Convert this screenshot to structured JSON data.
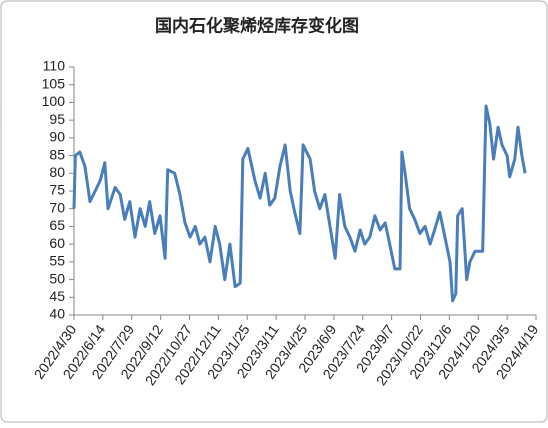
{
  "chart_data": {
    "type": "line",
    "title": "国内石化聚烯烃库存变化图",
    "color": "#4a7ebb",
    "x": [
      "2022/4/30",
      "2022/5/2",
      "2022/5/9",
      "2022/5/17",
      "2022/5/25",
      "2022/6/2",
      "2022/6/10",
      "2022/6/17",
      "2022/6/22",
      "2022/7/3",
      "2022/7/11",
      "2022/7/18",
      "2022/7/26",
      "2022/8/3",
      "2022/8/11",
      "2022/8/19",
      "2022/8/26",
      "2022/9/3",
      "2022/9/11",
      "2022/9/19",
      "2022/9/23",
      "2022/10/4",
      "2022/10/12",
      "2022/10/20",
      "2022/10/28",
      "2022/11/5",
      "2022/11/12",
      "2022/11/20",
      "2022/11/28",
      "2022/12/6",
      "2022/12/13",
      "2022/12/21",
      "2022/12/29",
      "2023/1/6",
      "2023/1/14",
      "2023/1/18",
      "2023/1/26",
      "2023/2/6",
      "2023/2/14",
      "2023/2/22",
      "2023/3/1",
      "2023/3/9",
      "2023/3/17",
      "2023/3/25",
      "2023/4/2",
      "2023/4/9",
      "2023/4/17",
      "2023/4/22",
      "2023/5/3",
      "2023/5/10",
      "2023/5/18",
      "2023/5/26",
      "2023/6/3",
      "2023/6/11",
      "2023/6/18",
      "2023/6/26",
      "2023/7/4",
      "2023/7/12",
      "2023/7/20",
      "2023/7/27",
      "2023/8/4",
      "2023/8/12",
      "2023/8/20",
      "2023/8/28",
      "2023/9/4",
      "2023/9/12",
      "2023/9/20",
      "2023/9/23",
      "2023/9/28",
      "2023/10/5",
      "2023/10/13",
      "2023/10/21",
      "2023/10/29",
      "2023/11/6",
      "2023/11/13",
      "2023/11/21",
      "2023/11/29",
      "2023/12/7",
      "2023/12/11",
      "2023/12/16",
      "2023/12/19",
      "2023/12/26",
      "2024/1/2",
      "2024/1/7",
      "2024/1/15",
      "2024/1/27",
      "2024/2/1",
      "2024/2/7",
      "2024/2/13",
      "2024/2/20",
      "2024/2/26",
      "2024/3/5",
      "2024/3/9",
      "2024/3/17",
      "2024/3/22",
      "2024/3/28",
      "2024/4/2"
    ],
    "values": [
      70,
      85,
      86,
      82,
      72,
      75,
      78,
      83,
      70,
      76,
      74,
      67,
      72,
      62,
      70,
      65,
      72,
      63,
      68,
      56,
      81,
      80,
      74,
      66,
      62,
      65,
      60,
      62,
      55,
      65,
      60,
      50,
      60,
      48,
      49,
      84,
      87,
      78,
      73,
      80,
      71,
      73,
      82,
      88,
      75,
      69,
      63,
      88,
      84,
      75,
      70,
      74,
      65,
      56,
      74,
      65,
      62,
      58,
      64,
      60,
      62,
      68,
      64,
      66,
      60,
      53,
      53,
      86,
      80,
      70,
      67,
      63,
      65,
      60,
      64,
      69,
      62,
      55,
      44,
      46,
      68,
      70,
      50,
      55,
      58,
      58,
      99,
      94,
      84,
      93,
      88,
      85,
      79,
      84,
      93,
      85,
      80
    ],
    "xlim": [
      "2022/4/30",
      "2024/4/19"
    ],
    "xticks": [
      "2022/4/30",
      "2022/6/14",
      "2022/7/29",
      "2022/9/12",
      "2022/10/27",
      "2022/12/11",
      "2023/1/25",
      "2023/3/11",
      "2023/4/25",
      "2023/6/9",
      "2023/7/24",
      "2023/9/7",
      "2023/10/22",
      "2023/12/6",
      "2024/1/20",
      "2024/3/5",
      "2024/4/19"
    ],
    "ylim": [
      40,
      110
    ],
    "yticks": [
      40,
      45,
      50,
      55,
      60,
      65,
      70,
      75,
      80,
      85,
      90,
      95,
      100,
      105,
      110
    ]
  }
}
